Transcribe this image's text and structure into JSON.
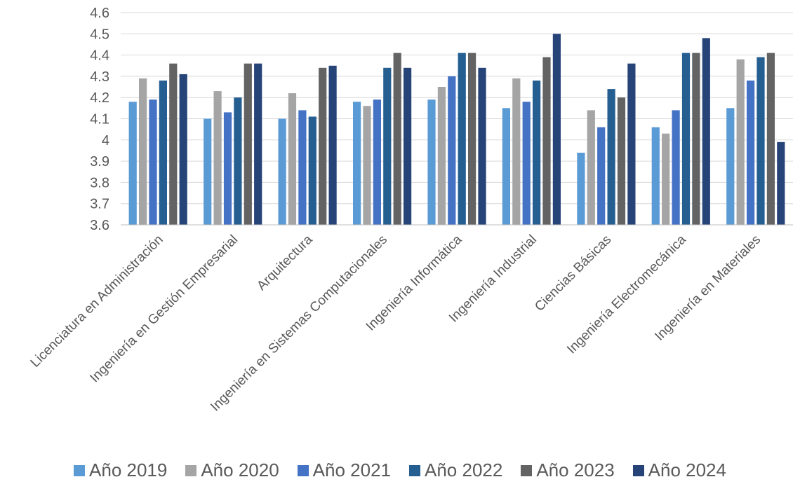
{
  "chart_data": {
    "type": "bar",
    "title": "",
    "xlabel": "",
    "ylabel": "",
    "ylim": [
      3.6,
      4.6
    ],
    "yticks": [
      "3.6",
      "3.7",
      "3.8",
      "3.9",
      "4",
      "4.1",
      "4.2",
      "4.3",
      "4.4",
      "4.5",
      "4.6"
    ],
    "grid": true,
    "legend_position": "bottom",
    "categories": [
      "Licenciatura en Administración",
      "Ingeniería en Gestión Empresarial",
      "Arquitectura",
      "Ingeniería en Sistemas Computacionales",
      "Ingeniería Informática",
      "Ingeniería Industrial",
      "Ciencias Básicas",
      "Ingeniería Electromecánica",
      "Ingeniería en Materiales"
    ],
    "series": [
      {
        "name": "Año 2019",
        "color": "#5b9bd5",
        "values": [
          4.18,
          4.1,
          4.1,
          4.18,
          4.19,
          4.15,
          3.94,
          4.06,
          4.15
        ]
      },
      {
        "name": "Año 2020",
        "color": "#a5a5a5",
        "values": [
          4.29,
          4.23,
          4.22,
          4.16,
          4.25,
          4.29,
          4.14,
          4.03,
          4.38
        ]
      },
      {
        "name": "Año 2021",
        "color": "#4472c4",
        "values": [
          4.19,
          4.13,
          4.14,
          4.19,
          4.3,
          4.18,
          4.06,
          4.14,
          4.28
        ]
      },
      {
        "name": "Año 2022",
        "color": "#255e91",
        "values": [
          4.28,
          4.2,
          4.11,
          4.34,
          4.41,
          4.28,
          4.24,
          4.41,
          4.39
        ]
      },
      {
        "name": "Año 2023",
        "color": "#636363",
        "values": [
          4.36,
          4.36,
          4.34,
          4.41,
          4.41,
          4.39,
          4.2,
          4.41,
          4.41
        ]
      },
      {
        "name": "Año 2024",
        "color": "#264478",
        "values": [
          4.31,
          4.36,
          4.35,
          4.34,
          4.34,
          4.5,
          4.36,
          4.48,
          3.99
        ]
      }
    ]
  }
}
